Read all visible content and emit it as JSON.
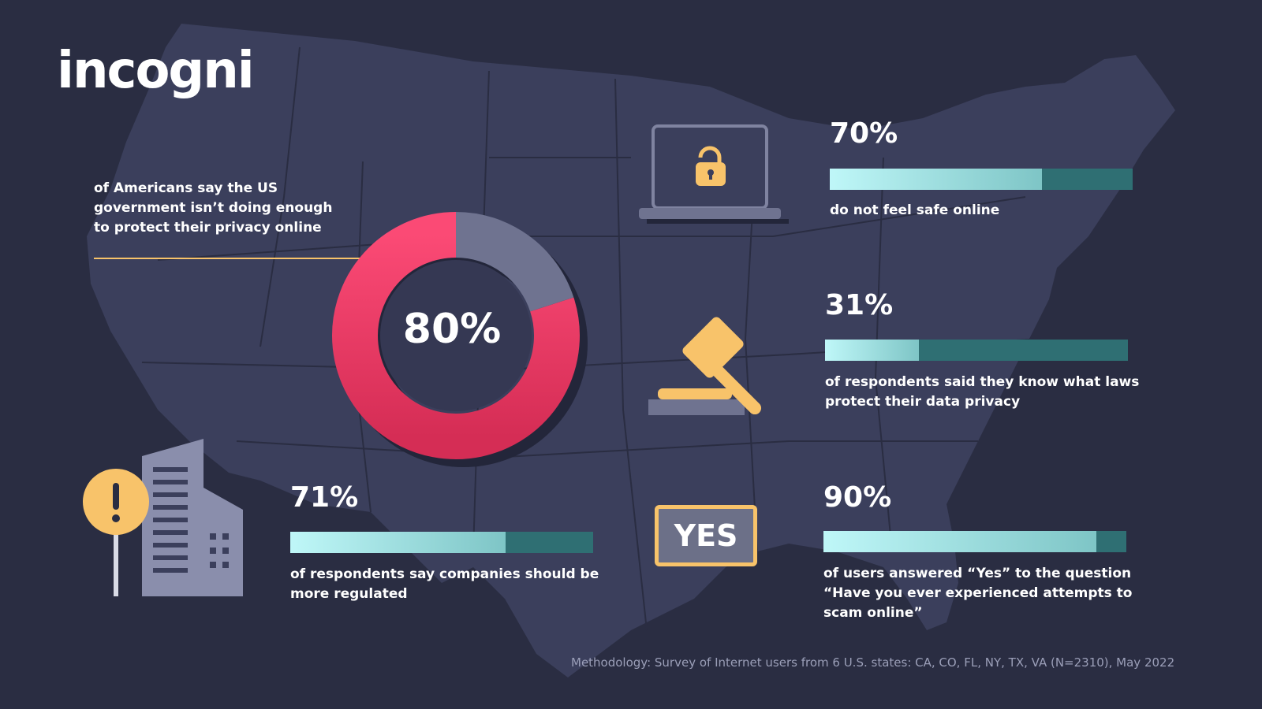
{
  "brand": {
    "logo_text": "incogni"
  },
  "colors": {
    "background": "#2a2d42",
    "map": "#3b3f5c",
    "accent_pink": "#f0446d",
    "donut_rest": "#6f7390",
    "gold": "#f8c36a",
    "bar_track": "#2f6f73",
    "bar_fill": "#bff7f8"
  },
  "icons": [
    "laptop-unlocked-padlock-icon",
    "gavel-icon",
    "warning-building-icon",
    "yes-sign-icon"
  ],
  "donut": {
    "label": "80%",
    "caption": "of Americans say the US government isn’t doing enough to protect their privacy online"
  },
  "stats": [
    {
      "value": "70%",
      "caption": "do not feel safe online"
    },
    {
      "value": "31%",
      "caption": "of respondents said they know what laws protect their data privacy"
    },
    {
      "value": "71%",
      "caption": " of respondents say companies should be more regulated"
    },
    {
      "value": "90%",
      "caption": "of users answered “Yes” to the question “Have you ever experienced attempts to scam online”"
    }
  ],
  "yes_sign": "YES",
  "methodology": "Methodology: Survey of Internet users from 6 U.S. states: CA, CO, FL, NY, TX, VA (N=2310), May 2022",
  "chart_data": [
    {
      "type": "pie",
      "categories": [
        "",
        ""
      ],
      "values": [
        80,
        20
      ],
      "title": ""
    },
    {
      "type": "bar",
      "categories": [
        "do not feel safe online"
      ],
      "values": [
        70
      ],
      "ylim": [
        0,
        100
      ]
    },
    {
      "type": "bar",
      "categories": [
        "of respondents said they know what laws protect their data privacy"
      ],
      "values": [
        31
      ],
      "ylim": [
        0,
        100
      ]
    },
    {
      "type": "bar",
      "categories": [
        "of respondents say companies should be more regulated"
      ],
      "values": [
        71
      ],
      "ylim": [
        0,
        100
      ]
    },
    {
      "type": "bar",
      "categories": [
        "of users answered “Yes” to the question “Have you ever experienced attempts to scam online”"
      ],
      "values": [
        90
      ],
      "ylim": [
        0,
        100
      ]
    }
  ]
}
